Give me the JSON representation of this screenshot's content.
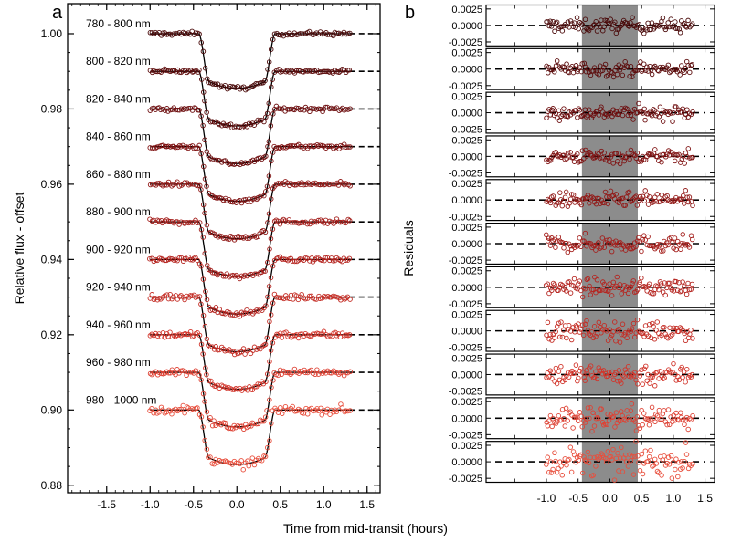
{
  "figure": {
    "shared_xlabel": "Time from mid-transit (hours)",
    "panel_labels": {
      "a": "a",
      "b": "b"
    }
  },
  "colors": {
    "model_line": "#000000",
    "zero_line": "#000000",
    "shade": "#8c8c8c",
    "band_colors": [
      "#4a0a0a",
      "#5c0c0c",
      "#6e0f10",
      "#801414",
      "#921a18",
      "#a41f1c",
      "#b52520",
      "#c42d25",
      "#d2362c",
      "#de4234",
      "#e84e3c"
    ]
  },
  "chart_data": [
    {
      "type": "scatter",
      "panel": "a",
      "title": "",
      "xlabel": "",
      "ylabel": "Relative flux - offset",
      "xlim": [
        -1.95,
        1.65
      ],
      "ylim": [
        0.878,
        1.008
      ],
      "xticks": [
        -1.5,
        -1.0,
        -0.5,
        0.0,
        0.5,
        1.0,
        1.5
      ],
      "xtick_labels": [
        "-1.5",
        "-1.0",
        "-0.5",
        "0.0",
        "0.5",
        "1.0",
        "1.5"
      ],
      "yticks": [
        0.88,
        0.9,
        0.92,
        0.94,
        0.96,
        0.98,
        1.0
      ],
      "ytick_labels": [
        "0.88",
        "0.90",
        "0.92",
        "0.94",
        "0.96",
        "0.98",
        "1.00"
      ],
      "transit": {
        "t_first": -0.44,
        "t_fourth": 0.44,
        "ingress_duration": 0.12,
        "depth": 0.0145
      },
      "x_range": [
        -1.0,
        1.3
      ],
      "band_labels": [
        "780 - 800 nm",
        "800 - 820 nm",
        "820 - 840 nm",
        "840 - 860 nm",
        "860 - 880 nm",
        "880 - 900 nm",
        "900 - 920 nm",
        "920 - 940 nm",
        "940 - 960 nm",
        "960 - 980 nm",
        "980 - 1000 nm"
      ],
      "band_offsets": [
        1.0,
        0.99,
        0.98,
        0.97,
        0.96,
        0.95,
        0.94,
        0.93,
        0.92,
        0.91,
        0.9
      ],
      "points_per_band": 110,
      "scatter_amplitude": [
        0.0005,
        0.0005,
        0.0005,
        0.0005,
        0.00055,
        0.0006,
        0.0006,
        0.0007,
        0.0008,
        0.0009,
        0.001
      ]
    },
    {
      "type": "scatter",
      "panel": "b",
      "title": "",
      "xlabel": "",
      "ylabel": "Residuals",
      "xlim": [
        -1.95,
        1.65
      ],
      "ylim_each": [
        -0.0031,
        0.0031
      ],
      "xticks": [
        -1.5,
        -1.0,
        -0.5,
        0.0,
        0.5,
        1.0,
        1.5
      ],
      "xtick_labels": [
        "-1.0",
        "-0.5",
        "0.0",
        "0.5",
        "1.0",
        "1.5"
      ],
      "xtick_label_values": [
        -1.0,
        -0.5,
        0.0,
        0.5,
        1.0,
        1.5
      ],
      "yticks": [
        0.0025,
        0.0,
        -0.0025
      ],
      "ytick_labels": [
        "0.0025",
        "0.0000",
        "-0.0025"
      ],
      "shaded_region": [
        -0.44,
        0.44
      ],
      "n_subpanels": 11,
      "x_range": [
        -1.0,
        1.3
      ],
      "points_per_band": 110,
      "scatter_amplitude": [
        0.0005,
        0.0005,
        0.0005,
        0.0005,
        0.00055,
        0.0006,
        0.0006,
        0.0007,
        0.0008,
        0.0009,
        0.001
      ]
    }
  ]
}
